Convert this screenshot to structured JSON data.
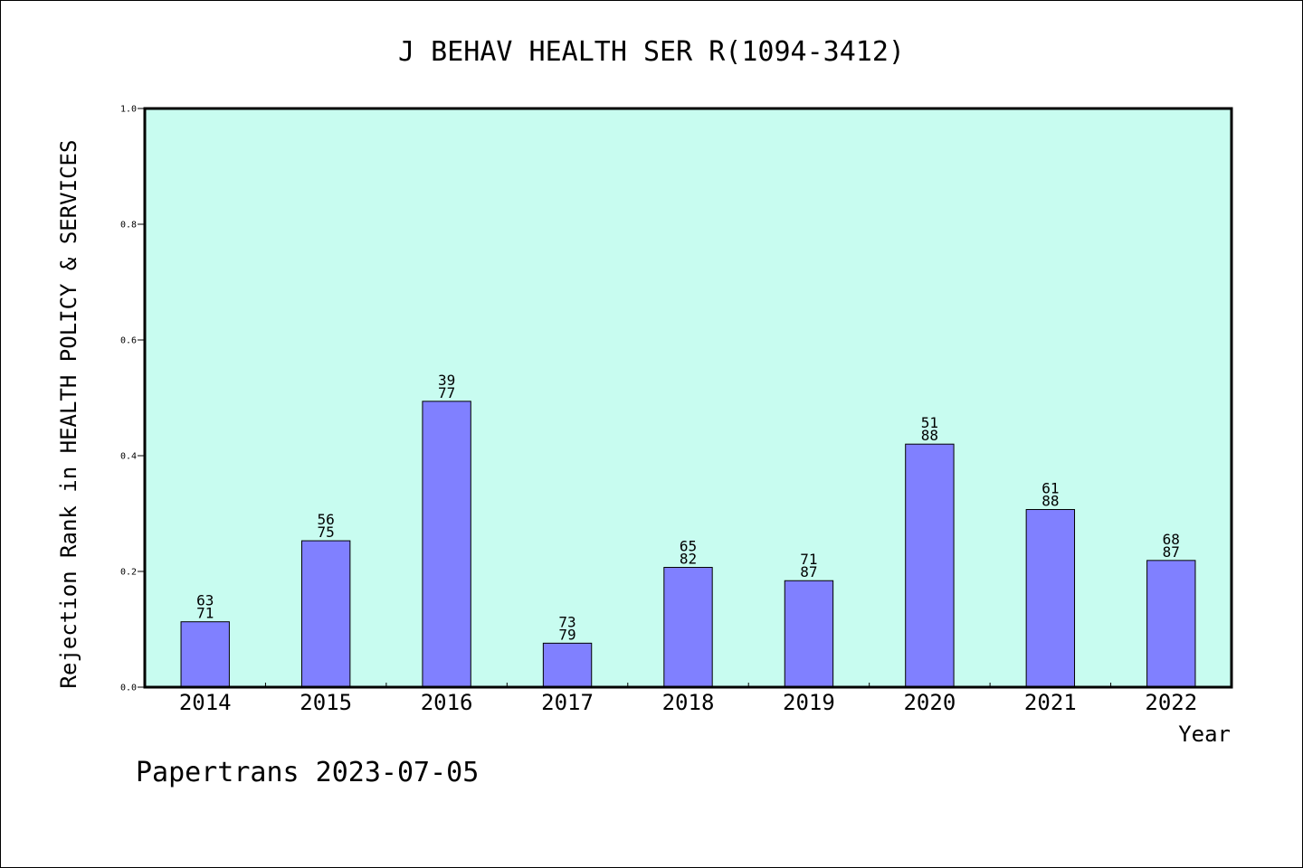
{
  "chart_data": {
    "type": "bar",
    "title": "J BEHAV HEALTH SER R(1094-3412)",
    "xlabel": "Year",
    "ylabel": "Rejection Rank in HEALTH POLICY & SERVICES",
    "ylim": [
      0,
      1.0
    ],
    "yticks": [
      "0.0",
      "0.2",
      "0.4",
      "0.6",
      "0.8",
      "1.0"
    ],
    "categories": [
      "2014",
      "2015",
      "2016",
      "2017",
      "2018",
      "2019",
      "2020",
      "2021",
      "2022"
    ],
    "values": [
      0.113,
      0.253,
      0.494,
      0.076,
      0.207,
      0.184,
      0.42,
      0.307,
      0.219
    ],
    "labels_top": [
      "63",
      "56",
      "39",
      "73",
      "65",
      "71",
      "51",
      "61",
      "68"
    ],
    "labels_bottom": [
      "71",
      "75",
      "77",
      "79",
      "82",
      "87",
      "88",
      "88",
      "87"
    ],
    "colors": {
      "plot_background": "#c8fcf0",
      "bar_fill": "#8080ff",
      "bar_stroke": "#000000"
    },
    "grid": false,
    "legend": "none"
  },
  "footer": {
    "text": "Papertrans 2023-07-05"
  }
}
